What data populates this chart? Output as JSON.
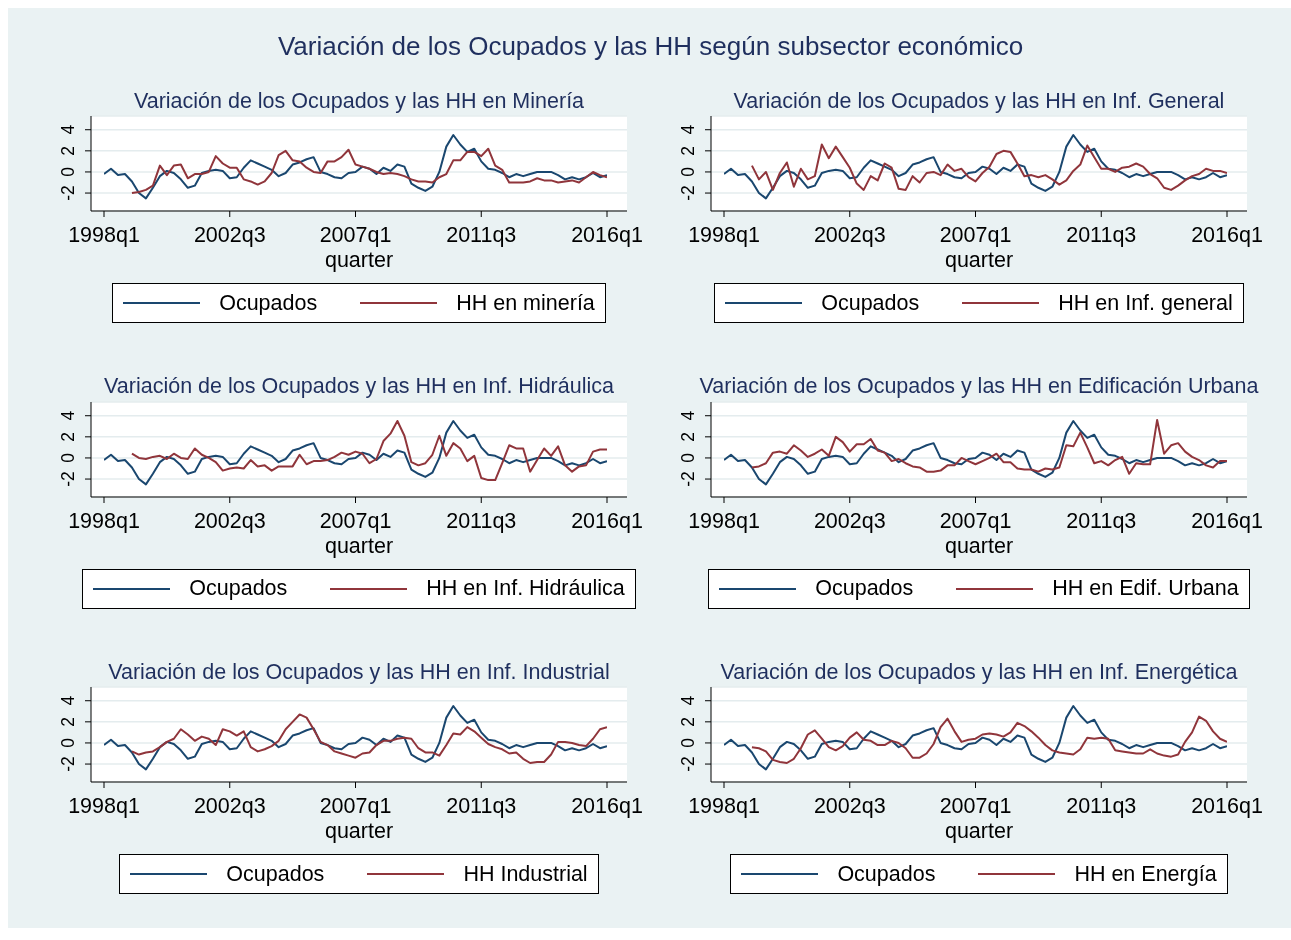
{
  "chart_data": [
    {
      "type": "other",
      "title": "Variación de los Ocupados y las HH según subsector económico"
    },
    {
      "type": "line",
      "title": "Variación de los Ocupados y las HH en Minería",
      "xlabel": "quarter",
      "categories": [
        "1998q1",
        null,
        null,
        null,
        null,
        null,
        null,
        null,
        null,
        null,
        null,
        null,
        null,
        null,
        null,
        null,
        null,
        null,
        "2002q3",
        null,
        null,
        null,
        null,
        null,
        null,
        null,
        null,
        null,
        null,
        null,
        null,
        null,
        null,
        null,
        null,
        null,
        "2007q1",
        null,
        null,
        null,
        null,
        null,
        null,
        null,
        null,
        null,
        null,
        null,
        null,
        null,
        null,
        null,
        null,
        null,
        "2011q3",
        null,
        null,
        null,
        null,
        null,
        null,
        null,
        null,
        null,
        null,
        null,
        null,
        null,
        null,
        null,
        null,
        null,
        "2016q1"
      ],
      "ylim": [
        -3.7,
        5.3
      ],
      "yticks": [
        -2,
        0,
        2,
        4
      ],
      "grid": "y",
      "legend": "bottom",
      "series": [
        {
          "name": "Ocupados",
          "color": "#1a476f",
          "values": [
            -0.2,
            0.3,
            -0.3,
            -0.2,
            -0.9,
            -2.0,
            -2.5,
            -1.5,
            -0.4,
            0.1,
            -0.1,
            -0.7,
            -1.5,
            -1.3,
            -0.1,
            0.1,
            0.2,
            0.1,
            -0.6,
            -0.5,
            0.4,
            1.1,
            0.8,
            0.5,
            0.2,
            -0.4,
            -0.1,
            0.7,
            0.9,
            1.2,
            1.4,
            0.0,
            -0.2,
            -0.5,
            -0.6,
            -0.1,
            0.0,
            0.5,
            0.3,
            -0.2,
            0.4,
            0.1,
            0.7,
            0.5,
            -1.1,
            -1.5,
            -1.8,
            -1.4,
            0.0,
            2.4,
            3.5,
            2.6,
            1.9,
            2.2,
            1.0,
            0.3,
            0.2,
            -0.1,
            -0.5,
            -0.2,
            -0.4,
            -0.2,
            0.0,
            0.0,
            0.0,
            -0.3,
            -0.7,
            -0.5,
            -0.7,
            -0.5,
            -0.1,
            -0.5,
            -0.3
          ]
        },
        {
          "name": "HH en minería",
          "color": "#90353b",
          "values": [
            null,
            null,
            null,
            null,
            -2.0,
            -1.9,
            -1.7,
            -1.3,
            0.6,
            -0.3,
            0.6,
            0.7,
            -0.6,
            -0.2,
            -0.2,
            0.0,
            1.5,
            0.8,
            0.4,
            0.4,
            -0.7,
            -0.9,
            -1.2,
            -0.9,
            -0.1,
            1.6,
            2.0,
            1.1,
            1.0,
            0.4,
            0.0,
            -0.1,
            1.0,
            1.0,
            1.4,
            2.1,
            0.7,
            0.5,
            0.3,
            0.0,
            -0.2,
            -0.1,
            -0.2,
            -0.4,
            -0.7,
            -0.9,
            -0.9,
            -1.0,
            -0.5,
            -0.2,
            1.1,
            1.1,
            1.9,
            1.9,
            1.5,
            2.2,
            0.6,
            0.2,
            -1.0,
            -1.0,
            -1.0,
            -0.9,
            -0.6,
            -0.8,
            -0.8,
            -1.0,
            -0.9,
            -0.8,
            -1.0,
            -0.5,
            0.0,
            -0.3,
            -0.5
          ]
        }
      ]
    },
    {
      "type": "line",
      "title": "Variación de los Ocupados y las HH en Inf. General",
      "xlabel": "quarter",
      "categories": [
        "1998q1",
        null,
        null,
        null,
        null,
        null,
        null,
        null,
        null,
        null,
        null,
        null,
        null,
        null,
        null,
        null,
        null,
        null,
        "2002q3",
        null,
        null,
        null,
        null,
        null,
        null,
        null,
        null,
        null,
        null,
        null,
        null,
        null,
        null,
        null,
        null,
        null,
        "2007q1",
        null,
        null,
        null,
        null,
        null,
        null,
        null,
        null,
        null,
        null,
        null,
        null,
        null,
        null,
        null,
        null,
        null,
        "2011q3",
        null,
        null,
        null,
        null,
        null,
        null,
        null,
        null,
        null,
        null,
        null,
        null,
        null,
        null,
        null,
        null,
        null,
        "2016q1"
      ],
      "ylim": [
        -3.7,
        5.3
      ],
      "yticks": [
        -2,
        0,
        2,
        4
      ],
      "grid": "y",
      "legend": "bottom",
      "series": [
        {
          "name": "Ocupados",
          "color": "#1a476f",
          "values": [
            -0.2,
            0.3,
            -0.3,
            -0.2,
            -0.9,
            -2.0,
            -2.5,
            -1.5,
            -0.4,
            0.1,
            -0.1,
            -0.7,
            -1.5,
            -1.3,
            -0.1,
            0.1,
            0.2,
            0.1,
            -0.6,
            -0.5,
            0.4,
            1.1,
            0.8,
            0.5,
            0.2,
            -0.4,
            -0.1,
            0.7,
            0.9,
            1.2,
            1.4,
            0.0,
            -0.2,
            -0.5,
            -0.6,
            -0.1,
            0.0,
            0.5,
            0.3,
            -0.2,
            0.4,
            0.1,
            0.7,
            0.5,
            -1.1,
            -1.5,
            -1.8,
            -1.4,
            0.0,
            2.4,
            3.5,
            2.6,
            1.9,
            2.2,
            1.0,
            0.3,
            0.2,
            -0.1,
            -0.5,
            -0.2,
            -0.4,
            -0.2,
            0.0,
            0.0,
            0.0,
            -0.3,
            -0.7,
            -0.5,
            -0.7,
            -0.5,
            -0.1,
            -0.5,
            -0.3
          ]
        },
        {
          "name": "HH en Inf. general",
          "color": "#90353b",
          "values": [
            null,
            null,
            null,
            null,
            0.6,
            -0.7,
            0.0,
            -1.7,
            -0.1,
            0.9,
            -1.4,
            0.3,
            -0.7,
            -0.4,
            2.6,
            1.3,
            2.4,
            1.4,
            0.4,
            -1.1,
            -1.7,
            -0.4,
            -0.8,
            0.8,
            0.4,
            -1.6,
            -1.7,
            -0.4,
            -1.0,
            -0.1,
            0.0,
            -0.3,
            0.7,
            0.1,
            0.3,
            -0.5,
            -0.9,
            -0.1,
            0.5,
            1.7,
            2.0,
            1.9,
            0.8,
            -0.4,
            -0.3,
            -0.5,
            -0.3,
            -0.7,
            -1.2,
            -0.8,
            0.1,
            0.7,
            2.5,
            1.4,
            0.3,
            0.3,
            0.0,
            0.4,
            0.5,
            0.8,
            0.5,
            -0.2,
            -0.6,
            -1.5,
            -1.7,
            -1.3,
            -0.8,
            -0.4,
            -0.2,
            0.3,
            0.1,
            0.1,
            -0.1
          ]
        }
      ]
    },
    {
      "type": "line",
      "title": "Variación de los Ocupados y las HH en Inf. Hidráulica",
      "xlabel": "quarter",
      "categories": [
        "1998q1",
        null,
        null,
        null,
        null,
        null,
        null,
        null,
        null,
        null,
        null,
        null,
        null,
        null,
        null,
        null,
        null,
        null,
        "2002q3",
        null,
        null,
        null,
        null,
        null,
        null,
        null,
        null,
        null,
        null,
        null,
        null,
        null,
        null,
        null,
        null,
        null,
        "2007q1",
        null,
        null,
        null,
        null,
        null,
        null,
        null,
        null,
        null,
        null,
        null,
        null,
        null,
        null,
        null,
        null,
        null,
        "2011q3",
        null,
        null,
        null,
        null,
        null,
        null,
        null,
        null,
        null,
        null,
        null,
        null,
        null,
        null,
        null,
        null,
        null,
        "2016q1"
      ],
      "ylim": [
        -3.7,
        5.3
      ],
      "yticks": [
        -2,
        0,
        2,
        4
      ],
      "grid": "y",
      "legend": "bottom",
      "series": [
        {
          "name": "Ocupados",
          "color": "#1a476f",
          "values": [
            -0.2,
            0.3,
            -0.3,
            -0.2,
            -0.9,
            -2.0,
            -2.5,
            -1.5,
            -0.4,
            0.1,
            -0.1,
            -0.7,
            -1.5,
            -1.3,
            -0.1,
            0.1,
            0.2,
            0.1,
            -0.6,
            -0.5,
            0.4,
            1.1,
            0.8,
            0.5,
            0.2,
            -0.4,
            -0.1,
            0.7,
            0.9,
            1.2,
            1.4,
            0.0,
            -0.2,
            -0.5,
            -0.6,
            -0.1,
            0.0,
            0.5,
            0.3,
            -0.2,
            0.4,
            0.1,
            0.7,
            0.5,
            -1.1,
            -1.5,
            -1.8,
            -1.4,
            0.0,
            2.4,
            3.5,
            2.6,
            1.9,
            2.2,
            1.0,
            0.3,
            0.2,
            -0.1,
            -0.5,
            -0.2,
            -0.4,
            -0.2,
            0.0,
            0.0,
            0.0,
            -0.3,
            -0.7,
            -0.5,
            -0.7,
            -0.5,
            -0.1,
            -0.5,
            -0.3
          ]
        },
        {
          "name": "HH en Inf. Hidráulica",
          "color": "#90353b",
          "values": [
            null,
            null,
            null,
            null,
            0.4,
            0.0,
            -0.1,
            0.1,
            0.2,
            -0.1,
            0.4,
            0.0,
            -0.1,
            0.9,
            0.3,
            0.0,
            -0.4,
            -1.2,
            -1.0,
            -0.9,
            -1.0,
            -0.2,
            -0.8,
            -0.7,
            -1.2,
            -0.8,
            -0.8,
            -0.8,
            0.3,
            -0.6,
            -0.3,
            -0.3,
            -0.2,
            0.1,
            0.5,
            0.3,
            0.6,
            0.4,
            -0.5,
            -0.1,
            1.6,
            2.3,
            3.5,
            2.1,
            -0.4,
            -0.7,
            -0.5,
            0.3,
            2.1,
            0.2,
            1.4,
            0.9,
            -0.3,
            0.2,
            -1.9,
            -2.1,
            -2.1,
            -0.5,
            1.2,
            0.9,
            0.9,
            -1.3,
            -0.2,
            0.9,
            0.2,
            1.1,
            -0.7,
            -1.3,
            -0.8,
            -0.7,
            0.6,
            0.8,
            0.8
          ]
        }
      ]
    },
    {
      "type": "line",
      "title": "Variación de los Ocupados y las HH en Edificación Urbana",
      "xlabel": "quarter",
      "categories": [
        "1998q1",
        null,
        null,
        null,
        null,
        null,
        null,
        null,
        null,
        null,
        null,
        null,
        null,
        null,
        null,
        null,
        null,
        null,
        "2002q3",
        null,
        null,
        null,
        null,
        null,
        null,
        null,
        null,
        null,
        null,
        null,
        null,
        null,
        null,
        null,
        null,
        null,
        "2007q1",
        null,
        null,
        null,
        null,
        null,
        null,
        null,
        null,
        null,
        null,
        null,
        null,
        null,
        null,
        null,
        null,
        null,
        "2011q3",
        null,
        null,
        null,
        null,
        null,
        null,
        null,
        null,
        null,
        null,
        null,
        null,
        null,
        null,
        null,
        null,
        null,
        "2016q1"
      ],
      "ylim": [
        -3.7,
        5.3
      ],
      "yticks": [
        -2,
        0,
        2,
        4
      ],
      "grid": "y",
      "legend": "bottom",
      "series": [
        {
          "name": "Ocupados",
          "color": "#1a476f",
          "values": [
            -0.2,
            0.3,
            -0.3,
            -0.2,
            -0.9,
            -2.0,
            -2.5,
            -1.5,
            -0.4,
            0.1,
            -0.1,
            -0.7,
            -1.5,
            -1.3,
            -0.1,
            0.1,
            0.2,
            0.1,
            -0.6,
            -0.5,
            0.4,
            1.1,
            0.8,
            0.5,
            0.2,
            -0.4,
            -0.1,
            0.7,
            0.9,
            1.2,
            1.4,
            0.0,
            -0.2,
            -0.5,
            -0.6,
            -0.1,
            0.0,
            0.5,
            0.3,
            -0.2,
            0.4,
            0.1,
            0.7,
            0.5,
            -1.1,
            -1.5,
            -1.8,
            -1.4,
            0.0,
            2.4,
            3.5,
            2.6,
            1.9,
            2.2,
            1.0,
            0.3,
            0.2,
            -0.1,
            -0.5,
            -0.2,
            -0.4,
            -0.2,
            0.0,
            0.0,
            0.0,
            -0.3,
            -0.7,
            -0.5,
            -0.7,
            -0.5,
            -0.1,
            -0.5,
            -0.3
          ]
        },
        {
          "name": "HH en Edif. Urbana",
          "color": "#90353b",
          "values": [
            null,
            null,
            null,
            null,
            -0.9,
            -0.8,
            -0.5,
            0.5,
            0.6,
            0.4,
            1.2,
            0.7,
            0.1,
            0.4,
            0.8,
            0.2,
            2.0,
            1.5,
            0.6,
            1.3,
            1.3,
            1.8,
            0.7,
            0.5,
            -0.3,
            -0.1,
            -0.5,
            -0.8,
            -0.9,
            -1.3,
            -1.3,
            -1.2,
            -0.7,
            -0.7,
            0.0,
            -0.3,
            -0.6,
            -0.3,
            0.0,
            0.4,
            -0.4,
            -0.4,
            -1.0,
            -1.1,
            -1.1,
            -1.3,
            -1.0,
            -1.1,
            -0.9,
            1.2,
            1.1,
            2.4,
            1.0,
            -0.5,
            -0.3,
            -0.7,
            -0.2,
            0.1,
            -1.5,
            -0.5,
            -0.6,
            -0.6,
            3.6,
            0.4,
            1.2,
            1.4,
            0.6,
            0.1,
            -0.2,
            -0.7,
            -0.9,
            -0.3,
            -0.3
          ]
        }
      ]
    },
    {
      "type": "line",
      "title": "Variación de los Ocupados y las HH en Inf. Industrial",
      "xlabel": "quarter",
      "categories": [
        "1998q1",
        null,
        null,
        null,
        null,
        null,
        null,
        null,
        null,
        null,
        null,
        null,
        null,
        null,
        null,
        null,
        null,
        null,
        "2002q3",
        null,
        null,
        null,
        null,
        null,
        null,
        null,
        null,
        null,
        null,
        null,
        null,
        null,
        null,
        null,
        null,
        null,
        "2007q1",
        null,
        null,
        null,
        null,
        null,
        null,
        null,
        null,
        null,
        null,
        null,
        null,
        null,
        null,
        null,
        null,
        null,
        "2011q3",
        null,
        null,
        null,
        null,
        null,
        null,
        null,
        null,
        null,
        null,
        null,
        null,
        null,
        null,
        null,
        null,
        null,
        "2016q1"
      ],
      "ylim": [
        -3.7,
        5.3
      ],
      "yticks": [
        -2,
        0,
        2,
        4
      ],
      "grid": "y",
      "legend": "bottom",
      "series": [
        {
          "name": "Ocupados",
          "color": "#1a476f",
          "values": [
            -0.2,
            0.3,
            -0.3,
            -0.2,
            -0.9,
            -2.0,
            -2.5,
            -1.5,
            -0.4,
            0.1,
            -0.1,
            -0.7,
            -1.5,
            -1.3,
            -0.1,
            0.1,
            0.2,
            0.1,
            -0.6,
            -0.5,
            0.4,
            1.1,
            0.8,
            0.5,
            0.2,
            -0.4,
            -0.1,
            0.7,
            0.9,
            1.2,
            1.4,
            0.0,
            -0.2,
            -0.5,
            -0.6,
            -0.1,
            0.0,
            0.5,
            0.3,
            -0.2,
            0.4,
            0.1,
            0.7,
            0.5,
            -1.1,
            -1.5,
            -1.8,
            -1.4,
            0.0,
            2.4,
            3.5,
            2.6,
            1.9,
            2.2,
            1.0,
            0.3,
            0.2,
            -0.1,
            -0.5,
            -0.2,
            -0.4,
            -0.2,
            0.0,
            0.0,
            0.0,
            -0.3,
            -0.7,
            -0.5,
            -0.7,
            -0.5,
            -0.1,
            -0.5,
            -0.3
          ]
        },
        {
          "name": "HH Industrial",
          "color": "#90353b",
          "values": [
            null,
            null,
            null,
            null,
            -0.8,
            -1.1,
            -0.9,
            -0.8,
            -0.4,
            0.1,
            0.4,
            1.3,
            0.8,
            0.2,
            0.6,
            0.4,
            -0.2,
            1.3,
            1.1,
            0.7,
            1.1,
            -0.4,
            -0.8,
            -0.6,
            -0.3,
            0.2,
            1.3,
            2.0,
            2.7,
            2.4,
            1.3,
            0.1,
            -0.2,
            -0.8,
            -1.0,
            -1.2,
            -1.4,
            -1.0,
            -0.9,
            -0.2,
            0.2,
            0.2,
            0.4,
            0.5,
            0.4,
            -0.5,
            -0.9,
            -0.9,
            -1.2,
            -0.2,
            0.9,
            0.8,
            1.5,
            1.1,
            0.5,
            -0.1,
            -0.4,
            -0.6,
            -1.0,
            -0.9,
            -1.5,
            -1.9,
            -1.8,
            -1.8,
            -1.1,
            0.1,
            0.1,
            0.0,
            -0.2,
            -0.3,
            0.4,
            1.3,
            1.5
          ]
        }
      ]
    },
    {
      "type": "line",
      "title": "Variación de los Ocupados y las HH en Inf. Energética",
      "xlabel": "quarter",
      "categories": [
        "1998q1",
        null,
        null,
        null,
        null,
        null,
        null,
        null,
        null,
        null,
        null,
        null,
        null,
        null,
        null,
        null,
        null,
        null,
        "2002q3",
        null,
        null,
        null,
        null,
        null,
        null,
        null,
        null,
        null,
        null,
        null,
        null,
        null,
        null,
        null,
        null,
        null,
        "2007q1",
        null,
        null,
        null,
        null,
        null,
        null,
        null,
        null,
        null,
        null,
        null,
        null,
        null,
        null,
        null,
        null,
        null,
        "2011q3",
        null,
        null,
        null,
        null,
        null,
        null,
        null,
        null,
        null,
        null,
        null,
        null,
        null,
        null,
        null,
        null,
        null,
        "2016q1"
      ],
      "ylim": [
        -3.7,
        5.3
      ],
      "yticks": [
        -2,
        0,
        2,
        4
      ],
      "grid": "y",
      "legend": "bottom",
      "series": [
        {
          "name": "Ocupados",
          "color": "#1a476f",
          "values": [
            -0.2,
            0.3,
            -0.3,
            -0.2,
            -0.9,
            -2.0,
            -2.5,
            -1.5,
            -0.4,
            0.1,
            -0.1,
            -0.7,
            -1.5,
            -1.3,
            -0.1,
            0.1,
            0.2,
            0.1,
            -0.6,
            -0.5,
            0.4,
            1.1,
            0.8,
            0.5,
            0.2,
            -0.4,
            -0.1,
            0.7,
            0.9,
            1.2,
            1.4,
            0.0,
            -0.2,
            -0.5,
            -0.6,
            -0.1,
            0.0,
            0.5,
            0.3,
            -0.2,
            0.4,
            0.1,
            0.7,
            0.5,
            -1.1,
            -1.5,
            -1.8,
            -1.4,
            0.0,
            2.4,
            3.5,
            2.6,
            1.9,
            2.2,
            1.0,
            0.3,
            0.2,
            -0.1,
            -0.5,
            -0.2,
            -0.4,
            -0.2,
            0.0,
            0.0,
            0.0,
            -0.3,
            -0.7,
            -0.5,
            -0.7,
            -0.5,
            -0.1,
            -0.5,
            -0.3
          ]
        },
        {
          "name": "HH en Energía",
          "color": "#90353b",
          "values": [
            null,
            null,
            null,
            null,
            -0.4,
            -0.5,
            -0.8,
            -1.6,
            -1.8,
            -1.9,
            -1.5,
            -0.5,
            0.8,
            1.2,
            0.4,
            -0.4,
            -0.7,
            -0.3,
            0.5,
            1.0,
            0.3,
            0.2,
            -0.2,
            -0.2,
            0.2,
            0.0,
            -0.5,
            -1.4,
            -1.4,
            -1.0,
            -0.1,
            1.5,
            2.3,
            1.1,
            0.1,
            0.3,
            0.4,
            0.8,
            0.9,
            0.8,
            0.6,
            1.0,
            1.9,
            1.6,
            1.1,
            0.5,
            -0.2,
            -0.7,
            -0.9,
            -1.0,
            -1.1,
            -0.6,
            0.5,
            0.4,
            0.5,
            0.4,
            -0.7,
            -0.8,
            -0.9,
            -1.0,
            -1.0,
            -0.6,
            -1.0,
            -1.2,
            -1.3,
            -1.1,
            0.1,
            1.0,
            2.5,
            2.1,
            1.1,
            0.4,
            0.1
          ]
        }
      ]
    }
  ]
}
